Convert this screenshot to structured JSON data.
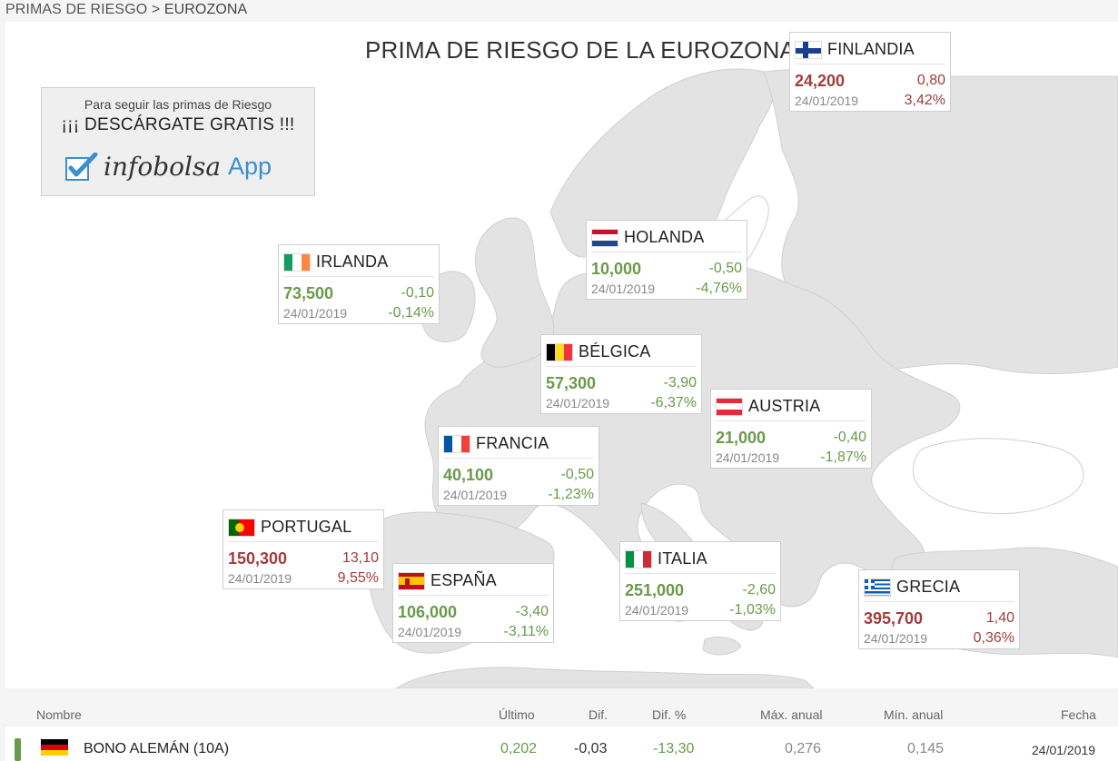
{
  "breadcrumb": {
    "parent": "PRIMAS DE RIESGO",
    "separator": ">",
    "current": "EUROZONA"
  },
  "map": {
    "title": "PRIMA DE RIESGO DE LA EUROZONA"
  },
  "promo": {
    "line1": "Para seguir las primas de Riesgo",
    "line2": "¡¡¡ DESCÁRGATE GRATIS !!!",
    "brand_name": "infobolsa",
    "brand_app": "App"
  },
  "countries": [
    {
      "id": "finlandia",
      "name": "FINLANDIA",
      "value": "24,200",
      "diff": "0,80",
      "date": "24/01/2019",
      "pct": "3,42%",
      "trend": "up",
      "flag": "fi"
    },
    {
      "id": "holanda",
      "name": "HOLANDA",
      "value": "10,000",
      "diff": "-0,50",
      "date": "24/01/2019",
      "pct": "-4,76%",
      "trend": "down",
      "flag": "nl"
    },
    {
      "id": "irlanda",
      "name": "IRLANDA",
      "value": "73,500",
      "diff": "-0,10",
      "date": "24/01/2019",
      "pct": "-0,14%",
      "trend": "down",
      "flag": "ie"
    },
    {
      "id": "belgica",
      "name": "BÉLGICA",
      "value": "57,300",
      "diff": "-3,90",
      "date": "24/01/2019",
      "pct": "-6,37%",
      "trend": "down",
      "flag": "be"
    },
    {
      "id": "austria",
      "name": "AUSTRIA",
      "value": "21,000",
      "diff": "-0,40",
      "date": "24/01/2019",
      "pct": "-1,87%",
      "trend": "down",
      "flag": "at"
    },
    {
      "id": "francia",
      "name": "FRANCIA",
      "value": "40,100",
      "diff": "-0,50",
      "date": "24/01/2019",
      "pct": "-1,23%",
      "trend": "down",
      "flag": "fr"
    },
    {
      "id": "portugal",
      "name": "PORTUGAL",
      "value": "150,300",
      "diff": "13,10",
      "date": "24/01/2019",
      "pct": "9,55%",
      "trend": "up",
      "flag": "pt"
    },
    {
      "id": "espana",
      "name": "ESPAÑA",
      "value": "106,000",
      "diff": "-3,40",
      "date": "24/01/2019",
      "pct": "-3,11%",
      "trend": "down",
      "flag": "es"
    },
    {
      "id": "italia",
      "name": "ITALIA",
      "value": "251,000",
      "diff": "-2,60",
      "date": "24/01/2019",
      "pct": "-1,03%",
      "trend": "down",
      "flag": "it"
    },
    {
      "id": "grecia",
      "name": "GRECIA",
      "value": "395,700",
      "diff": "1,40",
      "date": "24/01/2019",
      "pct": "0,36%",
      "trend": "up",
      "flag": "gr"
    }
  ],
  "table": {
    "columns": [
      "Nombre",
      "Último",
      "Dif.",
      "Dif. %",
      "Máx. anual",
      "Mín. anual",
      "Fecha"
    ],
    "rows": [
      {
        "name": "BONO ALEMÁN (10A)",
        "last": "0,202",
        "diff": "-0,03",
        "diff_pct": "-13,30",
        "max": "0,276",
        "min": "0,145",
        "date": "24/01/2019"
      }
    ]
  },
  "colors": {
    "up": "#a23c3c",
    "down": "#6a9a4a",
    "land": "#e5e5e5",
    "sea": "#ffffff",
    "brand_blue": "#3a8fd0"
  }
}
